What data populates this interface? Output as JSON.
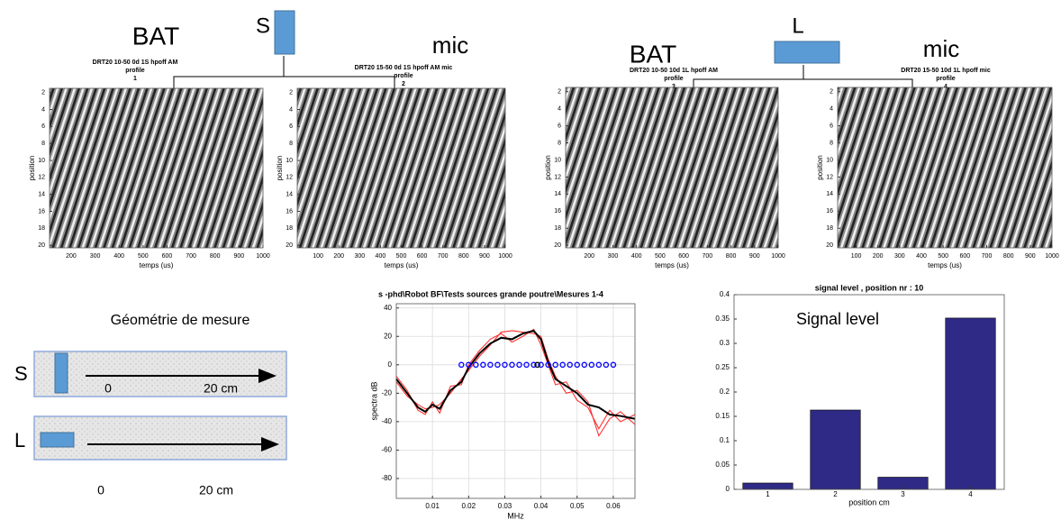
{
  "slide": {
    "left": {
      "bat": "BAT",
      "source": "S",
      "mic": "mic"
    },
    "right": {
      "source": "L",
      "bat": "BAT",
      "mic": "mic"
    },
    "geometry": {
      "title": "Géométrie de mesure",
      "rows": [
        {
          "label": "S",
          "start": "0",
          "end": "20 cm"
        },
        {
          "label": "L",
          "start": "0",
          "end": "20 cm"
        }
      ]
    }
  },
  "chart_data": [
    {
      "type": "image",
      "title": [
        "DRT20 10-50 0d 1S hpoff AM",
        "profile",
        "1"
      ],
      "x_label": "temps (us)",
      "y_label": "position",
      "xlim": [
        110,
        1000
      ],
      "xticks": [
        200,
        300,
        400,
        500,
        600,
        700,
        800,
        900,
        1000
      ],
      "ylim": [
        1.5,
        20.3
      ],
      "y_reversed": true,
      "yticks": [
        2,
        4,
        6,
        8,
        10,
        12,
        14,
        16,
        18,
        20
      ]
    },
    {
      "type": "image",
      "title": [
        "DRT20 15-50 0d 1S hpoff AM mic",
        "profile",
        "2"
      ],
      "x_label": "temps (us)",
      "y_label": "position",
      "xlim": [
        0,
        1000
      ],
      "xticks": [
        100,
        200,
        300,
        400,
        500,
        600,
        700,
        800,
        900,
        1000
      ],
      "ylim": [
        1.5,
        20.3
      ],
      "y_reversed": true,
      "yticks": [
        2,
        4,
        6,
        8,
        10,
        12,
        14,
        16,
        18,
        20
      ]
    },
    {
      "type": "image",
      "title": [
        "DRT20 10-50 10d 1L hpoff AM",
        "profile",
        "3"
      ],
      "x_label": "temps (us)",
      "y_label": "position",
      "xlim": [
        100,
        1000
      ],
      "xticks": [
        200,
        300,
        400,
        500,
        600,
        700,
        800,
        900,
        1000
      ],
      "ylim": [
        1.5,
        20.3
      ],
      "y_reversed": true,
      "yticks": [
        2,
        4,
        6,
        8,
        10,
        12,
        14,
        16,
        18,
        20
      ]
    },
    {
      "type": "image",
      "title": [
        "DRT20 15-50 10d 1L hpoff mic",
        "profile",
        "4"
      ],
      "x_label": "temps (us)",
      "y_label": "position",
      "xlim": [
        15,
        1000
      ],
      "xticks": [
        100,
        200,
        300,
        400,
        500,
        600,
        700,
        800,
        900,
        1000
      ],
      "ylim": [
        1.5,
        20.3
      ],
      "y_reversed": true,
      "yticks": [
        2,
        4,
        6,
        8,
        10,
        12,
        14,
        16,
        18,
        20
      ]
    },
    {
      "type": "line",
      "title": "s -phd\\Robot BF\\Tests sources grande poutre\\Mesures 1-4",
      "x_label": "MHz",
      "y_label": "spectra dB",
      "xlim": [
        0,
        0.066
      ],
      "xticks": [
        0.01,
        0.02,
        0.03,
        0.04,
        0.05,
        0.06
      ],
      "ylim": [
        -94,
        43
      ],
      "yticks": [
        40,
        20,
        0,
        -20,
        -40,
        -60,
        -80
      ],
      "grid": true,
      "series": [
        {
          "color": "#ff3030",
          "style": "line",
          "x": [
            0,
            0.003,
            0.006,
            0.008,
            0.01,
            0.012,
            0.015,
            0.018,
            0.02,
            0.023,
            0.026,
            0.029,
            0.032,
            0.035,
            0.038,
            0.04,
            0.042,
            0.044,
            0.047,
            0.05,
            0.053,
            0.056,
            0.059,
            0.062,
            0.066
          ],
          "values": [
            -8,
            -18,
            -32,
            -35,
            -26,
            -34,
            -15,
            -14,
            0,
            10,
            18,
            22,
            16,
            20,
            25,
            14,
            0,
            -14,
            -12,
            -25,
            -30,
            -45,
            -32,
            -40,
            -35
          ]
        },
        {
          "color": "#ff3030",
          "style": "line",
          "x": [
            0,
            0.003,
            0.006,
            0.008,
            0.01,
            0.012,
            0.015,
            0.018,
            0.02,
            0.023,
            0.026,
            0.029,
            0.032,
            0.035,
            0.038,
            0.04,
            0.042,
            0.044,
            0.047,
            0.05,
            0.053,
            0.056,
            0.059,
            0.062,
            0.066
          ],
          "values": [
            -12,
            -22,
            -28,
            -31,
            -30,
            -28,
            -20,
            -10,
            -4,
            6,
            14,
            23,
            24,
            23,
            22,
            20,
            4,
            -8,
            -20,
            -18,
            -26,
            -50,
            -38,
            -33,
            -42
          ]
        },
        {
          "color": "#000000",
          "style": "line",
          "x": [
            0,
            0.003,
            0.006,
            0.008,
            0.01,
            0.012,
            0.015,
            0.018,
            0.02,
            0.023,
            0.026,
            0.029,
            0.032,
            0.035,
            0.038,
            0.04,
            0.042,
            0.044,
            0.047,
            0.05,
            0.053,
            0.056,
            0.059,
            0.062,
            0.066
          ],
          "values": [
            -10,
            -20,
            -30,
            -33,
            -28,
            -31,
            -18,
            -12,
            -2,
            8,
            15,
            19,
            18,
            22,
            24,
            18,
            2,
            -10,
            -15,
            -20,
            -28,
            -30,
            -35,
            -36,
            -38
          ]
        },
        {
          "color": "#0000ff",
          "style": "markers",
          "x": [
            0.018,
            0.02,
            0.022,
            0.024,
            0.026,
            0.028,
            0.03,
            0.032,
            0.034,
            0.036,
            0.038,
            0.04,
            0.042,
            0.044,
            0.046,
            0.048,
            0.05,
            0.052,
            0.054,
            0.056,
            0.058,
            0.06
          ],
          "values": [
            0,
            0,
            0,
            0,
            0,
            0,
            0,
            0,
            0,
            0,
            0,
            0,
            0,
            0,
            0,
            0,
            0,
            0,
            0,
            0,
            0,
            0
          ]
        },
        {
          "color": "#000000",
          "style": "markers",
          "x": [
            0.039
          ],
          "values": [
            0
          ]
        }
      ]
    },
    {
      "type": "bar",
      "title": "signal level , position nr : 10",
      "annotation": "Signal level",
      "x_label": "position cm",
      "categories": [
        "1",
        "2",
        "3",
        "4"
      ],
      "values": [
        0.013,
        0.163,
        0.025,
        0.352
      ],
      "color": "#2e2a85",
      "ylim": [
        0,
        0.4
      ],
      "yticks": [
        0,
        0.05,
        0.1,
        0.15,
        0.2,
        0.25,
        0.3,
        0.35,
        0.4
      ]
    }
  ]
}
